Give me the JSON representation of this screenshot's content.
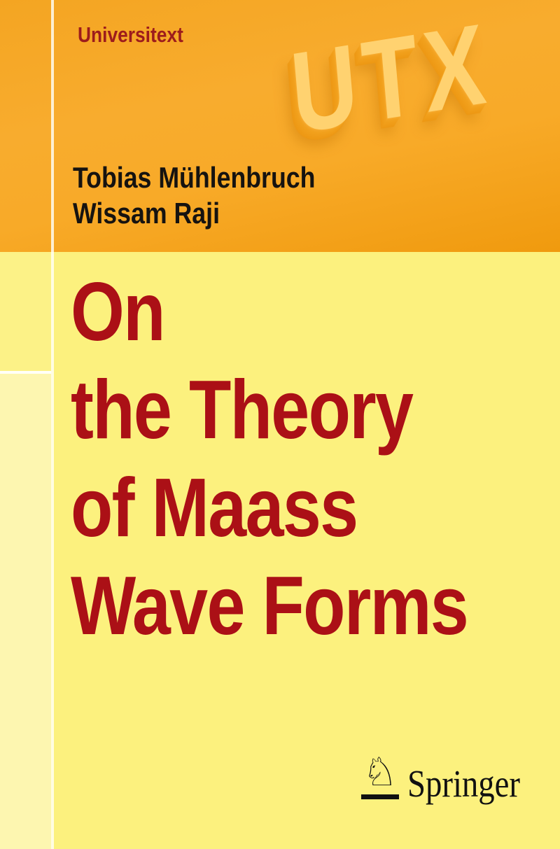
{
  "cover": {
    "series_label": "Universitext",
    "series_logo_text": "UTX",
    "authors": [
      "Tobias Mühlenbruch",
      "Wissam Raji"
    ],
    "title_lines": [
      "On",
      "the Theory",
      "of Maass",
      "Wave Forms"
    ],
    "publisher": {
      "name": "Springer",
      "logo_icon": "springer-horse-knight-icon",
      "horse_glyph": "♘"
    },
    "colors": {
      "header_orange": "#f7a824",
      "header_orange_deep": "#f09a0e",
      "body_yellow": "#fcf17e",
      "left_strip_upper_yellow": "#fcf287",
      "left_strip_lower_yellow": "#fdf6b0",
      "divider_white": "#ffffff",
      "series_label_red": "#9d1c1c",
      "title_red": "#ab1016",
      "author_black": "#161310",
      "utx_face_orange": "#ffd270",
      "utx_side_orange": "#ee9915",
      "publisher_black": "#111111"
    }
  }
}
